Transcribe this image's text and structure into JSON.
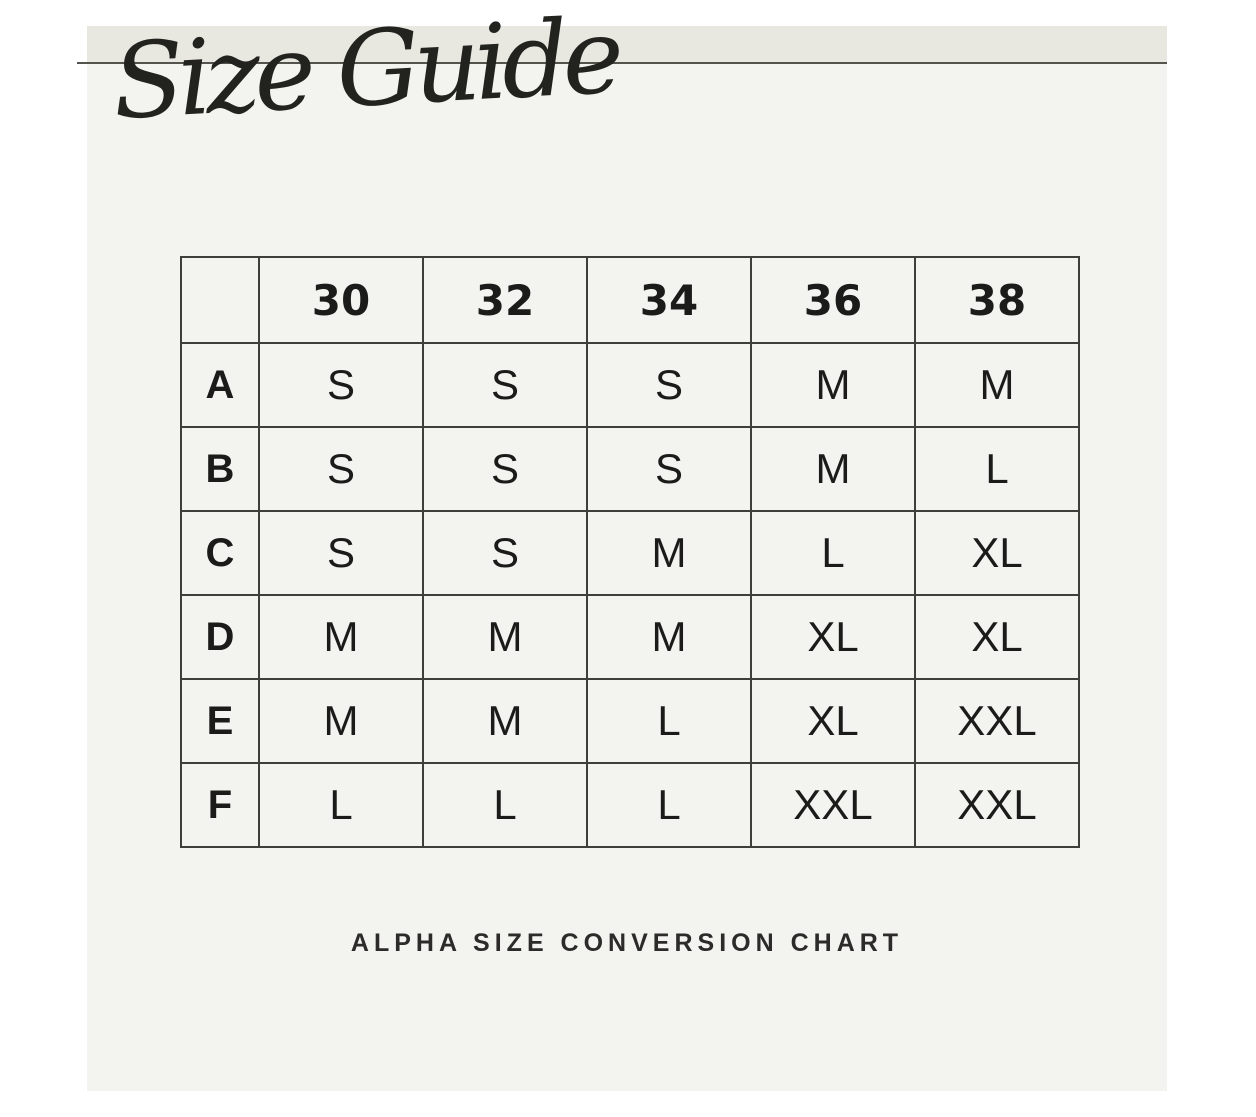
{
  "chart_data": {
    "type": "table",
    "title": "Size Guide",
    "caption": "ALPHA SIZE CONVERSION CHART",
    "columns": [
      "",
      "30",
      "32",
      "34",
      "36",
      "38"
    ],
    "row_labels": [
      "A",
      "B",
      "C",
      "D",
      "E",
      "F"
    ],
    "rows": [
      [
        "S",
        "S",
        "S",
        "M",
        "M"
      ],
      [
        "S",
        "S",
        "S",
        "M",
        "L"
      ],
      [
        "S",
        "S",
        "M",
        "L",
        "XL"
      ],
      [
        "M",
        "M",
        "M",
        "XL",
        "XL"
      ],
      [
        "M",
        "M",
        "L",
        "XL",
        "XXL"
      ],
      [
        "L",
        "L",
        "L",
        "XXL",
        "XXL"
      ]
    ]
  },
  "colors": {
    "page_background": "#ffffff",
    "panel_background": "#f3f3ef",
    "band_background": "#e8e8e1",
    "rule": "#54544e",
    "table_border": "#3e3e3a",
    "text": "#1b1b19"
  }
}
